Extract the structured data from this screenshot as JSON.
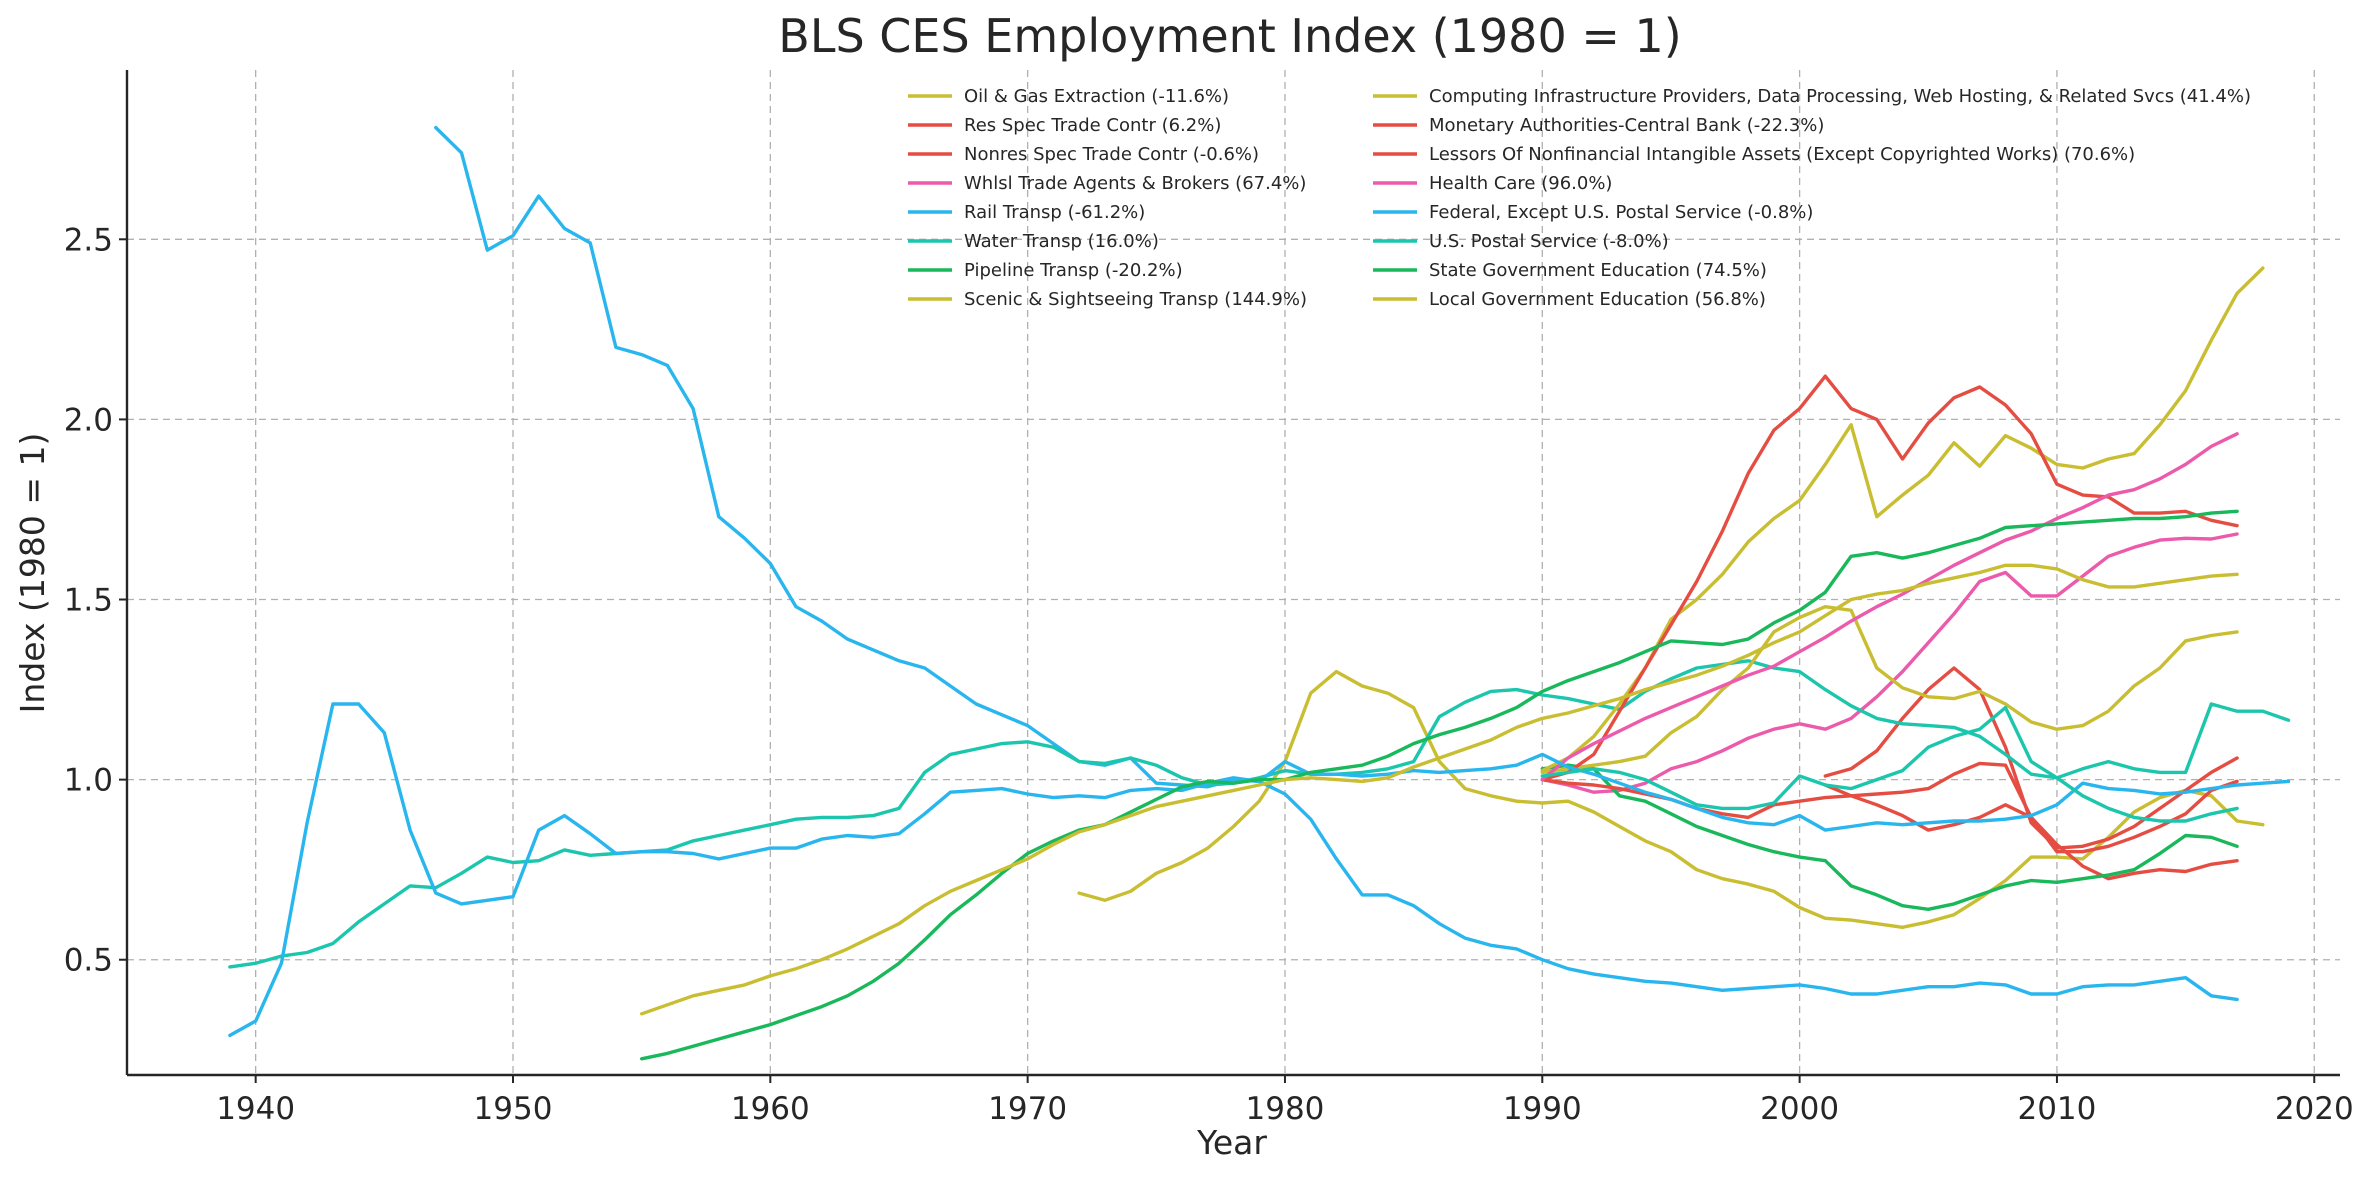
{
  "chart_data": {
    "type": "line",
    "title": "BLS CES Employment Index (1980 = 1)",
    "xlabel": "Year",
    "ylabel": "Index (1980 = 1)",
    "xlim": [
      1935,
      2021
    ],
    "ylim": [
      0.18,
      2.97
    ],
    "xticks": [
      1940,
      1950,
      1960,
      1970,
      1980,
      1990,
      2000,
      2010,
      2020
    ],
    "yticks": [
      0.5,
      1.0,
      1.5,
      2.0,
      2.5
    ],
    "ytick_labels": [
      "0.5",
      "1.0",
      "1.5",
      "2.0",
      "2.5"
    ],
    "grid": true,
    "legend_position": "top-right, two columns",
    "series": [
      {
        "name": "Oil & Gas Extraction (-11.6%)",
        "color": "#c9bd32",
        "start": 1972,
        "values": [
          0.685,
          0.665,
          0.69,
          0.74,
          0.77,
          0.81,
          0.87,
          0.94,
          1.05,
          1.24,
          1.3,
          1.26,
          1.24,
          1.2,
          1.05,
          0.975,
          0.955,
          0.94,
          0.935,
          0.94,
          0.91,
          0.87,
          0.83,
          0.8,
          0.75,
          0.725,
          0.71,
          0.69,
          0.645,
          0.615,
          0.61,
          0.6,
          0.59,
          0.605,
          0.625,
          0.67,
          0.72,
          0.785,
          0.785,
          0.78,
          0.84,
          0.91,
          0.95,
          0.97,
          0.955,
          0.885,
          0.875
        ]
      },
      {
        "name": "Res Spec Trade Contr (6.2%)",
        "color": "#e54d42",
        "start": 2001,
        "values": [
          1.01,
          1.03,
          1.08,
          1.17,
          1.25,
          1.31,
          1.25,
          1.09,
          0.88,
          0.81,
          0.815,
          0.835,
          0.87,
          0.92,
          0.97,
          1.02,
          1.06
        ]
      },
      {
        "name": "Nonres Spec Trade Contr (-0.6%)",
        "color": "#e54d42",
        "start": 2001,
        "values": [
          0.985,
          0.955,
          0.93,
          0.9,
          0.86,
          0.875,
          0.895,
          0.93,
          0.895,
          0.82,
          0.76,
          0.725,
          0.74,
          0.75,
          0.745,
          0.765,
          0.775
        ]
      },
      {
        "name": "Whlsl Trade Agents & Brokers (67.4%)",
        "color": "#ec5aab",
        "start": 1990,
        "values": [
          1.0,
          0.985,
          0.965,
          0.97,
          0.99,
          1.03,
          1.05,
          1.08,
          1.115,
          1.14,
          1.155,
          1.14,
          1.17,
          1.23,
          1.3,
          1.38,
          1.46,
          1.55,
          1.575,
          1.51,
          1.51,
          1.565,
          1.62,
          1.645,
          1.665,
          1.67,
          1.668,
          1.682
        ]
      },
      {
        "name": "Rail Transp (-61.2%)",
        "color": "#29b6ee",
        "start": 1947,
        "values": [
          2.81,
          2.74,
          2.47,
          2.51,
          2.62,
          2.53,
          2.49,
          2.2,
          2.18,
          2.15,
          2.03,
          1.73,
          1.67,
          1.6,
          1.48,
          1.44,
          1.39,
          1.36,
          1.33,
          1.31,
          1.26,
          1.21,
          1.18,
          1.15,
          1.1,
          1.05,
          1.04,
          1.06,
          0.99,
          0.985,
          0.98,
          1.0,
          0.995,
          0.96,
          0.89,
          0.78,
          0.68,
          0.68,
          0.65,
          0.6,
          0.56,
          0.54,
          0.53,
          0.5,
          0.475,
          0.46,
          0.45,
          0.44,
          0.435,
          0.425,
          0.415,
          0.42,
          0.425,
          0.43,
          0.42,
          0.405,
          0.405,
          0.415,
          0.425,
          0.425,
          0.435,
          0.43,
          0.405,
          0.405,
          0.425,
          0.43,
          0.43,
          0.44,
          0.45,
          0.4,
          0.39
        ]
      },
      {
        "name": "Water Transp (16.0%)",
        "color": "#1cc6ad",
        "start": 1939,
        "values": [
          0.48,
          0.49,
          0.51,
          0.52,
          0.545,
          0.605,
          0.655,
          0.705,
          0.7,
          0.74,
          0.785,
          0.77,
          0.775,
          0.805,
          0.79,
          0.795,
          0.8,
          0.805,
          0.83,
          0.845,
          0.86,
          0.875,
          0.89,
          0.895,
          0.895,
          0.9,
          0.92,
          1.02,
          1.07,
          1.085,
          1.1,
          1.105,
          1.09,
          1.05,
          1.045,
          1.06,
          1.04,
          1.005,
          0.985,
          0.99,
          1.005,
          1.025,
          1.015,
          1.015,
          1.02,
          1.03,
          1.05,
          1.175,
          1.215,
          1.245,
          1.25,
          1.235,
          1.225,
          1.21,
          1.195,
          1.245,
          1.28,
          1.31,
          1.32,
          1.33,
          1.31,
          1.3,
          1.25,
          1.205,
          1.17,
          1.155,
          1.15,
          1.145,
          1.12,
          1.07,
          1.015,
          1.005,
          1.03,
          1.05,
          1.03,
          1.02,
          1.02,
          1.21,
          1.19,
          1.19,
          1.165
        ]
      },
      {
        "name": "Pipeline Transp (-20.2%)",
        "color": "#19b85a",
        "start": 1990,
        "values": [
          1.03,
          1.04,
          1.03,
          0.955,
          0.94,
          0.905,
          0.87,
          0.845,
          0.82,
          0.8,
          0.785,
          0.775,
          0.705,
          0.68,
          0.65,
          0.64,
          0.655,
          0.68,
          0.705,
          0.72,
          0.715,
          0.725,
          0.735,
          0.75,
          0.795,
          0.845,
          0.84,
          0.815
        ]
      },
      {
        "name": "Scenic & Sightseeing Transp (144.9%)",
        "color": "#c9bd32",
        "start": 1990,
        "values": [
          1.025,
          1.06,
          1.12,
          1.21,
          1.31,
          1.445,
          1.5,
          1.57,
          1.66,
          1.725,
          1.775,
          1.875,
          1.985,
          1.73,
          1.79,
          1.845,
          1.935,
          1.87,
          1.955,
          1.92,
          1.875,
          1.865,
          1.89,
          1.905,
          1.985,
          2.08,
          2.22,
          2.35,
          2.42
        ]
      },
      {
        "name": "Computing Infrastructure Providers, Data Processing, Web Hosting, & Related Svcs (41.4%)",
        "color": "#c9bd32",
        "start": 1990,
        "values": [
          1.02,
          1.03,
          1.04,
          1.05,
          1.065,
          1.13,
          1.175,
          1.25,
          1.31,
          1.41,
          1.45,
          1.48,
          1.47,
          1.31,
          1.255,
          1.23,
          1.225,
          1.245,
          1.21,
          1.16,
          1.14,
          1.15,
          1.19,
          1.26,
          1.31,
          1.385,
          1.4,
          1.41
        ]
      },
      {
        "name": "Monetary Authorities-Central Bank (-22.3%)",
        "color": "#e54d42",
        "start": 1990,
        "values": [
          1.0,
          0.99,
          0.985,
          0.975,
          0.96,
          0.945,
          0.92,
          0.905,
          0.895,
          0.93,
          0.94,
          0.95,
          0.955,
          0.96,
          0.965,
          0.975,
          1.015,
          1.045,
          1.04,
          0.895,
          0.8,
          0.8,
          0.815,
          0.84,
          0.87,
          0.905,
          0.97,
          0.995
        ]
      },
      {
        "name": "Lessors Of Nonfinancial Intangible Assets (Except Copyrighted Works) (70.6%)",
        "color": "#e54d42",
        "start": 1990,
        "values": [
          1.0,
          1.02,
          1.07,
          1.19,
          1.31,
          1.43,
          1.55,
          1.69,
          1.85,
          1.97,
          2.03,
          2.12,
          2.03,
          2.0,
          1.89,
          1.99,
          2.06,
          2.09,
          2.04,
          1.96,
          1.82,
          1.79,
          1.785,
          1.74,
          1.74,
          1.745,
          1.72,
          1.705
        ]
      },
      {
        "name": "Health Care (96.0%)",
        "color": "#ec5aab",
        "start": 1990,
        "values": [
          1.0,
          1.06,
          1.1,
          1.135,
          1.17,
          1.2,
          1.23,
          1.26,
          1.29,
          1.315,
          1.355,
          1.395,
          1.44,
          1.48,
          1.515,
          1.555,
          1.595,
          1.63,
          1.665,
          1.69,
          1.725,
          1.755,
          1.79,
          1.805,
          1.835,
          1.875,
          1.925,
          1.96
        ]
      },
      {
        "name": "Federal, Except U.S. Postal Service (-0.8%)",
        "color": "#29b6ee",
        "start": 1939,
        "values": [
          0.29,
          0.33,
          0.49,
          0.88,
          1.21,
          1.21,
          1.13,
          0.86,
          0.685,
          0.655,
          0.665,
          0.675,
          0.86,
          0.9,
          0.85,
          0.795,
          0.8,
          0.8,
          0.795,
          0.78,
          0.795,
          0.81,
          0.81,
          0.835,
          0.845,
          0.84,
          0.85,
          0.905,
          0.965,
          0.97,
          0.975,
          0.96,
          0.95,
          0.955,
          0.95,
          0.97,
          0.975,
          0.97,
          0.99,
          1.005,
          0.995,
          1.05,
          1.015,
          1.015,
          1.01,
          1.015,
          1.025,
          1.02,
          1.025,
          1.03,
          1.04,
          1.07,
          1.035,
          1.015,
          0.99,
          0.965,
          0.945,
          0.92,
          0.895,
          0.88,
          0.875,
          0.9,
          0.86,
          0.87,
          0.88,
          0.875,
          0.88,
          0.885,
          0.885,
          0.89,
          0.9,
          0.93,
          0.99,
          0.975,
          0.97,
          0.96,
          0.965,
          0.975,
          0.985,
          0.99,
          0.995
        ]
      },
      {
        "name": "U.S. Postal Service (-8.0%)",
        "color": "#1cc6ad",
        "start": 1990,
        "values": [
          1.01,
          1.02,
          1.03,
          1.02,
          1.0,
          0.965,
          0.93,
          0.92,
          0.92,
          0.935,
          1.01,
          0.985,
          0.975,
          1.0,
          1.025,
          1.09,
          1.12,
          1.14,
          1.2,
          1.05,
          1.005,
          0.955,
          0.92,
          0.895,
          0.885,
          0.885,
          0.905,
          0.92
        ]
      },
      {
        "name": "State Government Education (74.5%)",
        "color": "#19b85a",
        "start": 1955,
        "values": [
          0.225,
          0.24,
          0.26,
          0.28,
          0.3,
          0.32,
          0.345,
          0.37,
          0.4,
          0.44,
          0.49,
          0.555,
          0.625,
          0.68,
          0.74,
          0.795,
          0.83,
          0.86,
          0.875,
          0.91,
          0.945,
          0.98,
          0.995,
          0.99,
          1.0,
          1.0,
          1.02,
          1.03,
          1.04,
          1.065,
          1.1,
          1.125,
          1.145,
          1.17,
          1.2,
          1.245,
          1.275,
          1.3,
          1.325,
          1.355,
          1.385,
          1.38,
          1.375,
          1.39,
          1.435,
          1.47,
          1.52,
          1.62,
          1.63,
          1.615,
          1.63,
          1.65,
          1.67,
          1.7,
          1.705,
          1.71,
          1.715,
          1.72,
          1.725,
          1.725,
          1.73,
          1.74,
          1.745
        ]
      },
      {
        "name": "Local Government Education (56.8%)",
        "color": "#c9bd32",
        "start": 1955,
        "values": [
          0.35,
          0.375,
          0.4,
          0.415,
          0.43,
          0.455,
          0.475,
          0.5,
          0.53,
          0.565,
          0.6,
          0.65,
          0.69,
          0.72,
          0.75,
          0.78,
          0.82,
          0.855,
          0.875,
          0.9,
          0.925,
          0.94,
          0.955,
          0.97,
          0.985,
          1.0,
          1.005,
          1.0,
          0.995,
          1.005,
          1.035,
          1.06,
          1.085,
          1.11,
          1.145,
          1.17,
          1.185,
          1.205,
          1.225,
          1.25,
          1.27,
          1.29,
          1.315,
          1.345,
          1.38,
          1.41,
          1.455,
          1.5,
          1.515,
          1.525,
          1.545,
          1.56,
          1.575,
          1.595,
          1.595,
          1.585,
          1.555,
          1.535,
          1.535,
          1.545,
          1.555,
          1.565,
          1.57
        ]
      }
    ]
  }
}
